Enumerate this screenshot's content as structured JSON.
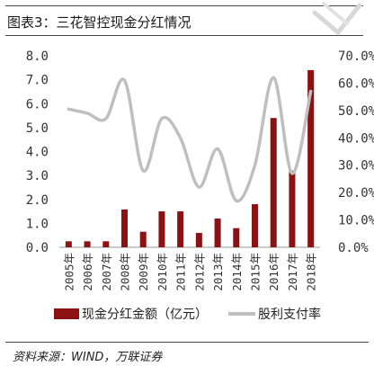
{
  "title": "图表3：三花智控现金分红情况",
  "source": "资料来源：WIND，万联证券",
  "colors": {
    "bar": "#8b1113",
    "line": "#bfbfbf",
    "watermark": "#d8d8d8"
  },
  "chart_data": {
    "type": "bar",
    "categories": [
      "2005年",
      "2006年",
      "2007年",
      "2008年",
      "2009年",
      "2010年",
      "2011年",
      "2012年",
      "2013年",
      "2014年",
      "2015年",
      "2016年",
      "2017年",
      "2018年"
    ],
    "series": [
      {
        "name": "现金分红金额（亿元）",
        "type": "bar",
        "axis": "left",
        "values": [
          0.25,
          0.25,
          0.25,
          1.58,
          0.65,
          1.5,
          1.5,
          0.6,
          1.2,
          0.8,
          1.8,
          5.4,
          3.2,
          7.4
        ]
      },
      {
        "name": "股利支付率",
        "type": "line",
        "axis": "right",
        "values": [
          50.5,
          49,
          47,
          61,
          28,
          47,
          40,
          22,
          36,
          17,
          30,
          62,
          27,
          57
        ]
      }
    ],
    "yleft": {
      "min": 0,
      "max": 8,
      "ticks": [
        "0.0",
        "1.0",
        "2.0",
        "3.0",
        "4.0",
        "5.0",
        "6.0",
        "7.0",
        "8.0"
      ]
    },
    "yright": {
      "min": 0,
      "max": 70,
      "ticks": [
        "0.0%",
        "10.0%",
        "20.0%",
        "30.0%",
        "40.0%",
        "50.0%",
        "60.0%",
        "70.0%"
      ]
    },
    "grid": false,
    "legend": "bottom"
  }
}
